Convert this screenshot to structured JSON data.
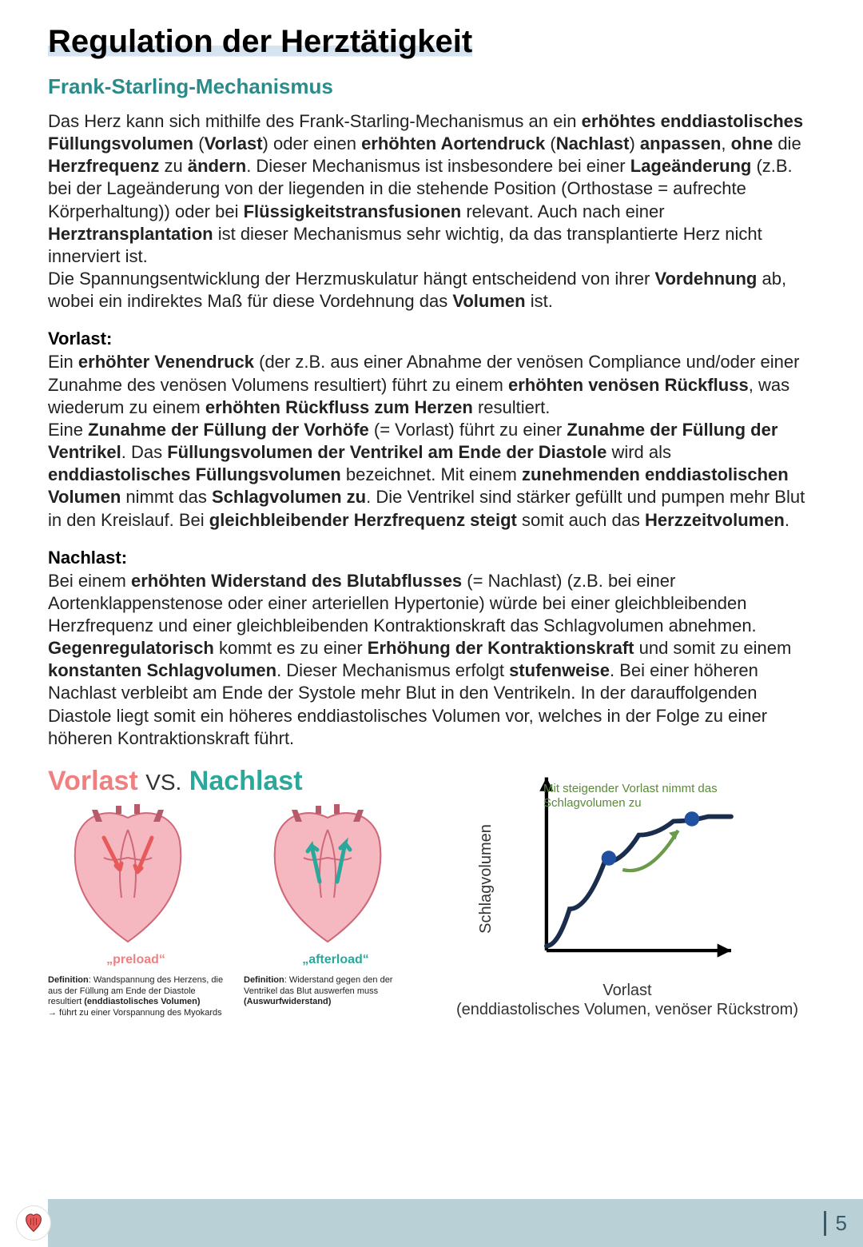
{
  "title": "Regulation der Herztätigkeit",
  "subtitle": "Frank-Starling-Mechanismus",
  "intro_html": "Das Herz kann sich mithilfe des Frank-Starling-Mechanismus an ein <strong>erhöhtes enddiastolisches Füllungsvolumen</strong> (<strong>Vorlast</strong>) oder einen <strong>erhöhten Aortendruck</strong> (<strong>Nachlast</strong>) <strong>anpassen</strong>, <strong>ohne</strong> die <strong>Herzfrequenz</strong> zu <strong>ändern</strong>. Dieser Mechanismus ist insbesondere bei einer <strong>Lageänderung</strong> (z.B. bei der Lageänderung von der liegenden in die stehende Position (Orthostase = aufrechte Körperhaltung)) oder bei <strong>Flüssigkeitstransfusionen</strong> relevant. Auch nach einer <strong>Herztransplantation</strong> ist dieser Mechanismus sehr wichtig, da das transplantierte Herz nicht innerviert ist.<br>Die Spannungsentwicklung der Herzmuskulatur hängt entscheidend von ihrer <strong>Vordehnung</strong> ab, wobei ein indirektes Maß für diese Vordehnung das <strong>Volumen</strong> ist.",
  "vorlast_head": "Vorlast:",
  "vorlast_html": "Ein <strong>erhöhter Venendruck</strong> (der z.B. aus einer Abnahme der venösen Compliance und/oder einer Zunahme des venösen Volumens resultiert) führt zu einem <strong>erhöhten venösen Rückfluss</strong>, was wiederum zu einem <strong>erhöhten Rückfluss zum Herzen</strong> resultiert.<br>Eine <strong>Zunahme der Füllung der Vorhöfe</strong> (= Vorlast) führt zu einer <strong>Zunahme der Füllung der Ventrikel</strong>. Das <strong>Füllungsvolumen der Ventrikel am Ende der Diastole</strong> wird als <strong>enddiastolisches Füllungsvolumen</strong> bezeichnet. Mit einem <strong>zunehmenden enddiastolischen Volumen</strong> nimmt das <strong>Schlagvolumen zu</strong>. Die Ventrikel sind stärker gefüllt und pumpen mehr Blut in den Kreislauf. Bei <strong>gleichbleibender Herzfrequenz steigt</strong> somit auch das <strong>Herzzeitvolumen</strong>.",
  "nachlast_head": "Nachlast:",
  "nachlast_html": "Bei einem <strong>erhöhten Widerstand des Blutabflusses</strong> (= Nachlast) (z.B. bei einer Aortenklappenstenose oder einer arteriellen Hypertonie) würde bei einer gleichbleibenden Herzfrequenz und einer gleichbleibenden Kontraktionskraft das Schlagvolumen abnehmen. <strong>Gegenregulatorisch</strong> kommt es zu einer <strong>Erhöhung der Kontraktionskraft</strong> und somit zu einem <strong>konstanten Schlagvolumen</strong>. Dieser Mechanismus erfolgt <strong>stufenweise</strong>. Bei einer höheren Nachlast verbleibt am Ende der Systole mehr Blut in den Ventrikeln. In der darauffolgenden Diastole liegt somit ein höheres enddiastolisches Volumen vor, welches in der Folge zu einer höheren Kontraktionskraft führt.",
  "diagram": {
    "title_vorlast": "Vorlast",
    "title_vs": "VS.",
    "title_nachlast": "Nachlast",
    "preload_label": "„preload“",
    "afterload_label": "„afterload“",
    "preload_def_html": "<strong>Definition</strong>: Wandspannung des Herzens, die aus der Füllung am Ende der Diastole resultiert <strong>(enddiastolisches Volumen)</strong><br>→ führt zu einer Vorspannung des Myokards",
    "afterload_def_html": "<strong>Definition</strong>: Widerstand gegen den der Ventrikel das Blut auswerfen muss <strong>(Auswurfwiderstand)</strong>",
    "heart_fill": "#f5b8c0",
    "heart_stroke": "#d06878",
    "preload_arrow_color": "#e85a5a",
    "afterload_arrow_color": "#2aa89b"
  },
  "chart": {
    "type": "line",
    "annotation": "Mit steigender Vorlast nimmt das Schlagvolumen zu",
    "annotation_color": "#5a8a3a",
    "ylabel": "Schlagvolumen",
    "xlabel": "Vorlast",
    "xlabel_sub": "(enddiastolisches Volumen, venöser Rückstrom)",
    "curve_color": "#1a2d4d",
    "curve_width": 4,
    "marker_color": "#2050a0",
    "marker_radius": 8,
    "arrow_color": "#6a9a4a",
    "axis_color": "#000",
    "xlim": [
      0,
      100
    ],
    "ylim": [
      0,
      100
    ],
    "curve_points": [
      [
        15,
        78
      ],
      [
        25,
        62
      ],
      [
        40,
        42
      ],
      [
        55,
        30
      ],
      [
        70,
        24
      ],
      [
        85,
        22
      ],
      [
        95,
        22
      ]
    ],
    "markers": [
      [
        42,
        40
      ],
      [
        78,
        23
      ]
    ],
    "green_arrow": {
      "from": [
        48,
        45
      ],
      "to": [
        72,
        28
      ]
    }
  },
  "page_number": "5"
}
